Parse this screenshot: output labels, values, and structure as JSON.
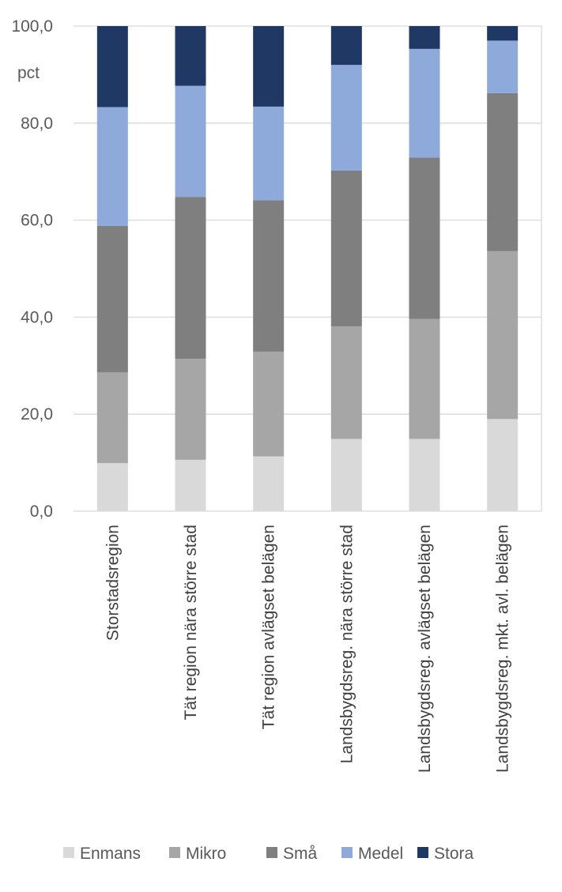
{
  "chart_data": {
    "type": "bar",
    "stacked": true,
    "unit_label": "pct",
    "categories": [
      "Storstadsregion",
      "Tät region nära större stad",
      "Tät region avlägset belägen",
      "Landsbygdsreg. nära större stad",
      "Landsbygdsreg. avlägset belägen",
      "Landsbygdsreg. mkt. avl. belägen"
    ],
    "series": [
      {
        "name": "Enmans",
        "color": "#d9d9d9",
        "values": [
          9.9,
          10.6,
          11.3,
          14.9,
          14.9,
          19.0
        ]
      },
      {
        "name": "Mikro",
        "color": "#a6a6a6",
        "values": [
          18.7,
          20.8,
          21.6,
          23.2,
          24.7,
          34.6
        ]
      },
      {
        "name": "Små",
        "color": "#7f7f7f",
        "values": [
          30.2,
          33.4,
          31.2,
          32.1,
          33.3,
          32.6
        ]
      },
      {
        "name": "Medel",
        "color": "#8eaadb",
        "values": [
          24.5,
          22.9,
          19.3,
          21.8,
          22.4,
          10.8
        ]
      },
      {
        "name": "Stora",
        "color": "#203864",
        "values": [
          16.7,
          12.3,
          16.6,
          8.0,
          4.7,
          3.0
        ]
      }
    ],
    "ylim": [
      0,
      100
    ],
    "yticks": [
      "0,0",
      "20,0",
      "40,0",
      "60,0",
      "80,0",
      "100,0"
    ],
    "grid": true,
    "legend_position": "bottom"
  }
}
